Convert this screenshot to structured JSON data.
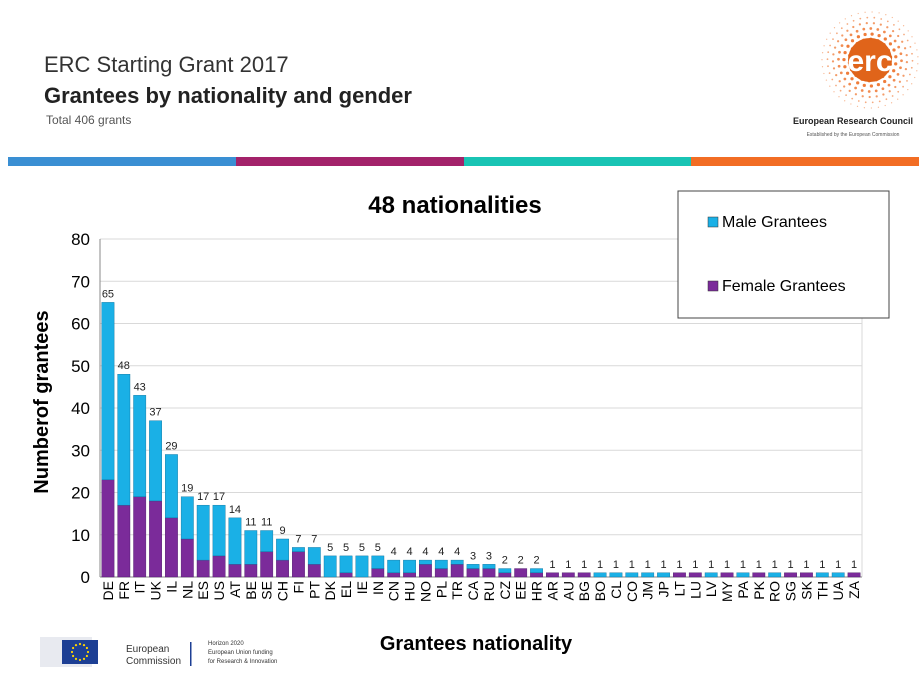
{
  "header": {
    "title": "ERC Starting Grant 2017",
    "subtitle": "Grantees by nationality and gender",
    "total": "Total 406 grants"
  },
  "logo": {
    "mark": "erc",
    "name": "European Research Council",
    "tagline": "Established by the European Commission"
  },
  "stripe_colors": [
    "#3a8fd3",
    "#a3226a",
    "#19c4b4",
    "#f26d24"
  ],
  "colors": {
    "male": "#1ab0e6",
    "female": "#7b2b9a"
  },
  "footer": {
    "commission": [
      "European",
      "Commission"
    ],
    "horizon": [
      "Horizon 2020",
      "European Union funding",
      "for Research & Innovation"
    ]
  },
  "chart_data": {
    "type": "bar",
    "stacked": true,
    "title": "48 nationalities",
    "xlabel": "Grantees nationality",
    "ylabel": "Numberof grantees",
    "ylim": [
      0,
      80
    ],
    "yticks": [
      0,
      10,
      20,
      30,
      40,
      50,
      60,
      70,
      80
    ],
    "grid": true,
    "legend_position": "top-right",
    "categories": [
      "DE",
      "FR",
      "IT",
      "UK",
      "IL",
      "NL",
      "ES",
      "US",
      "AT",
      "BE",
      "SE",
      "CH",
      "FI",
      "PT",
      "DK",
      "EL",
      "IE",
      "IN",
      "CN",
      "HU",
      "NO",
      "PL",
      "TR",
      "CA",
      "RU",
      "CZ",
      "EE",
      "HR",
      "AR",
      "AU",
      "BG",
      "BO",
      "CL",
      "CO",
      "JM",
      "JP",
      "LT",
      "LU",
      "LV",
      "MY",
      "PA",
      "PK",
      "RO",
      "SG",
      "SK",
      "TH",
      "UA",
      "ZA"
    ],
    "series": [
      {
        "name": "Female Grantees",
        "values": [
          23,
          17,
          19,
          18,
          14,
          9,
          4,
          5,
          3,
          3,
          6,
          4,
          6,
          3,
          0,
          1,
          0,
          2,
          1,
          1,
          3,
          2,
          3,
          2,
          2,
          1,
          2,
          1,
          1,
          1,
          1,
          0,
          0,
          0,
          0,
          0,
          1,
          1,
          0,
          1,
          0,
          1,
          0,
          1,
          1,
          0,
          0,
          1
        ]
      },
      {
        "name": "Male Grantees",
        "values": [
          42,
          31,
          24,
          19,
          15,
          10,
          13,
          12,
          11,
          8,
          5,
          5,
          1,
          4,
          5,
          4,
          5,
          3,
          3,
          3,
          1,
          2,
          1,
          1,
          1,
          1,
          0,
          1,
          0,
          0,
          0,
          1,
          1,
          1,
          1,
          1,
          0,
          0,
          1,
          0,
          1,
          0,
          1,
          0,
          0,
          1,
          1,
          0
        ]
      }
    ],
    "totals": [
      65,
      48,
      43,
      37,
      29,
      19,
      17,
      17,
      14,
      11,
      11,
      9,
      7,
      7,
      5,
      5,
      5,
      5,
      4,
      4,
      4,
      4,
      4,
      3,
      3,
      2,
      2,
      2,
      1,
      1,
      1,
      1,
      1,
      1,
      1,
      1,
      1,
      1,
      1,
      1,
      1,
      1,
      1,
      1,
      1,
      1,
      1,
      1
    ]
  }
}
